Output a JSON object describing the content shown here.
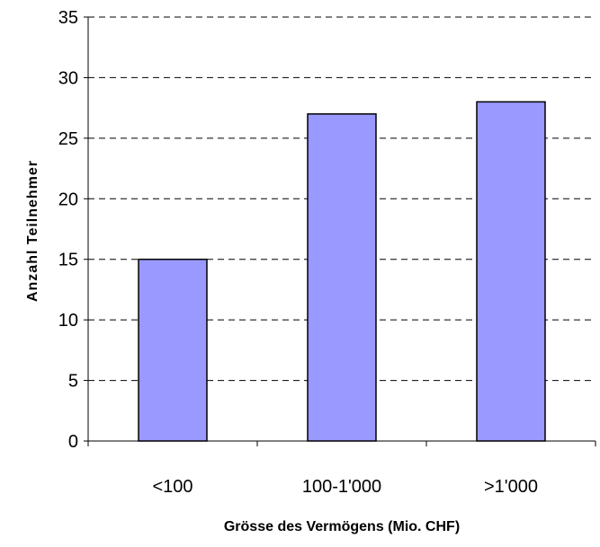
{
  "chart_data": {
    "type": "bar",
    "title": "",
    "categories": [
      "<100",
      "100-1'000",
      ">1'000"
    ],
    "values": [
      15,
      27,
      28
    ],
    "xlabel": "Grösse des Vermögens  (Mio. CHF)",
    "ylabel": "Anzahl Teilnehmer",
    "ylim": [
      0,
      35
    ],
    "yticks": [
      0,
      5,
      10,
      15,
      20,
      25,
      30,
      35
    ],
    "grid": true,
    "grid_style": "dashed",
    "legend": "none",
    "colors": {
      "bar_fill": "#9999ff",
      "bar_stroke": "#000000",
      "grid": "#000000",
      "axis": "#000000"
    }
  }
}
